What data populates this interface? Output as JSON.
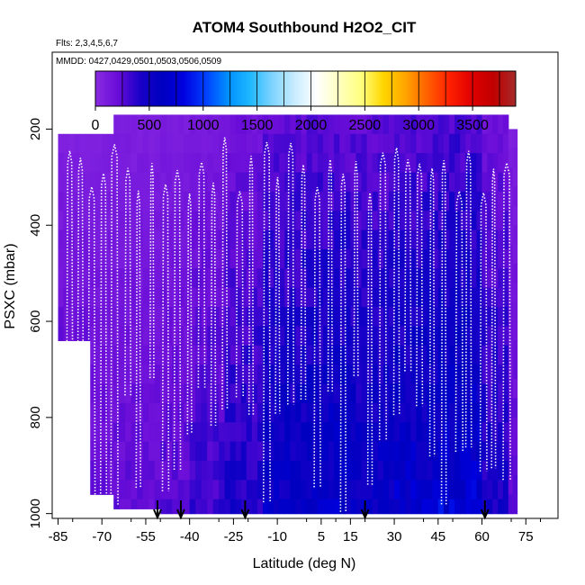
{
  "chart_data": {
    "type": "heatmap",
    "title": "ATOM4 Southbound H2O2_CIT",
    "subtitle_flights": "Flts: 2,3,4,5,6,7",
    "subtitle_dates": "MMDD: 0427,0429,0501,0503,0506,0509",
    "xlabel": "Latitude (deg N)",
    "ylabel": "PSXC (mbar)",
    "xlim": [
      -87,
      86
    ],
    "ylim": [
      1010,
      40
    ],
    "y_reversed": true,
    "xticks": [
      -85,
      -70,
      -55,
      -40,
      -25,
      -10,
      5,
      15,
      30,
      45,
      60,
      75
    ],
    "yticks": [
      200,
      400,
      600,
      800,
      1000
    ],
    "colorbar": {
      "ticks": [
        0,
        500,
        1000,
        1500,
        2000,
        2500,
        3000,
        3500
      ],
      "range": [
        0,
        3900
      ],
      "colors": [
        "#8a2be2",
        "#6a0dd8",
        "#1a00c8",
        "#0000c0",
        "#0000e0",
        "#0040ff",
        "#0090ff",
        "#20b8ff",
        "#7fd4ff",
        "#c8ecff",
        "#ffffff",
        "#ffffc0",
        "#ffff80",
        "#ffd700",
        "#ffa500",
        "#ff6000",
        "#ff2000",
        "#e00000",
        "#c00000",
        "#a52a2a"
      ]
    },
    "flight_dates": [
      "0427",
      "0429",
      "0501",
      "0503",
      "0506",
      "0509"
    ],
    "arrow_latitudes": [
      -51,
      -43,
      -21,
      20,
      61
    ],
    "curtain": [
      {
        "lat_from": -85,
        "lat_to": -74,
        "p_top": 210,
        "p_bottom": 640,
        "value": 140
      },
      {
        "lat_from": -74,
        "lat_to": -66,
        "p_top": 210,
        "p_bottom": 960,
        "value": 150
      },
      {
        "lat_from": -66,
        "lat_to": -50,
        "p_top": 170,
        "p_bottom": 990,
        "value": 160
      },
      {
        "lat_from": -50,
        "lat_to": -40,
        "p_top": 170,
        "p_bottom": 1000,
        "value": 180
      },
      {
        "lat_from": -40,
        "lat_to": -28,
        "p_top": 170,
        "p_bottom": 1000,
        "value": 230
      },
      {
        "lat_from": -28,
        "lat_to": -15,
        "p_top": 170,
        "p_bottom": 1000,
        "value": 310
      },
      {
        "lat_from": -15,
        "lat_to": 0,
        "p_top": 170,
        "p_bottom": 1000,
        "value": 420
      },
      {
        "lat_from": 0,
        "lat_to": 15,
        "p_top": 170,
        "p_bottom": 1000,
        "value": 460
      },
      {
        "lat_from": 15,
        "lat_to": 30,
        "p_top": 170,
        "p_bottom": 1000,
        "value": 430
      },
      {
        "lat_from": 30,
        "lat_to": 45,
        "p_top": 170,
        "p_bottom": 1000,
        "value": 470
      },
      {
        "lat_from": 45,
        "lat_to": 60,
        "p_top": 170,
        "p_bottom": 1000,
        "value": 520
      },
      {
        "lat_from": 60,
        "lat_to": 69,
        "p_top": 170,
        "p_bottom": 1000,
        "value": 330
      },
      {
        "lat_from": 69,
        "lat_to": 72,
        "p_top": 200,
        "p_bottom": 1000,
        "value": 170
      }
    ]
  }
}
